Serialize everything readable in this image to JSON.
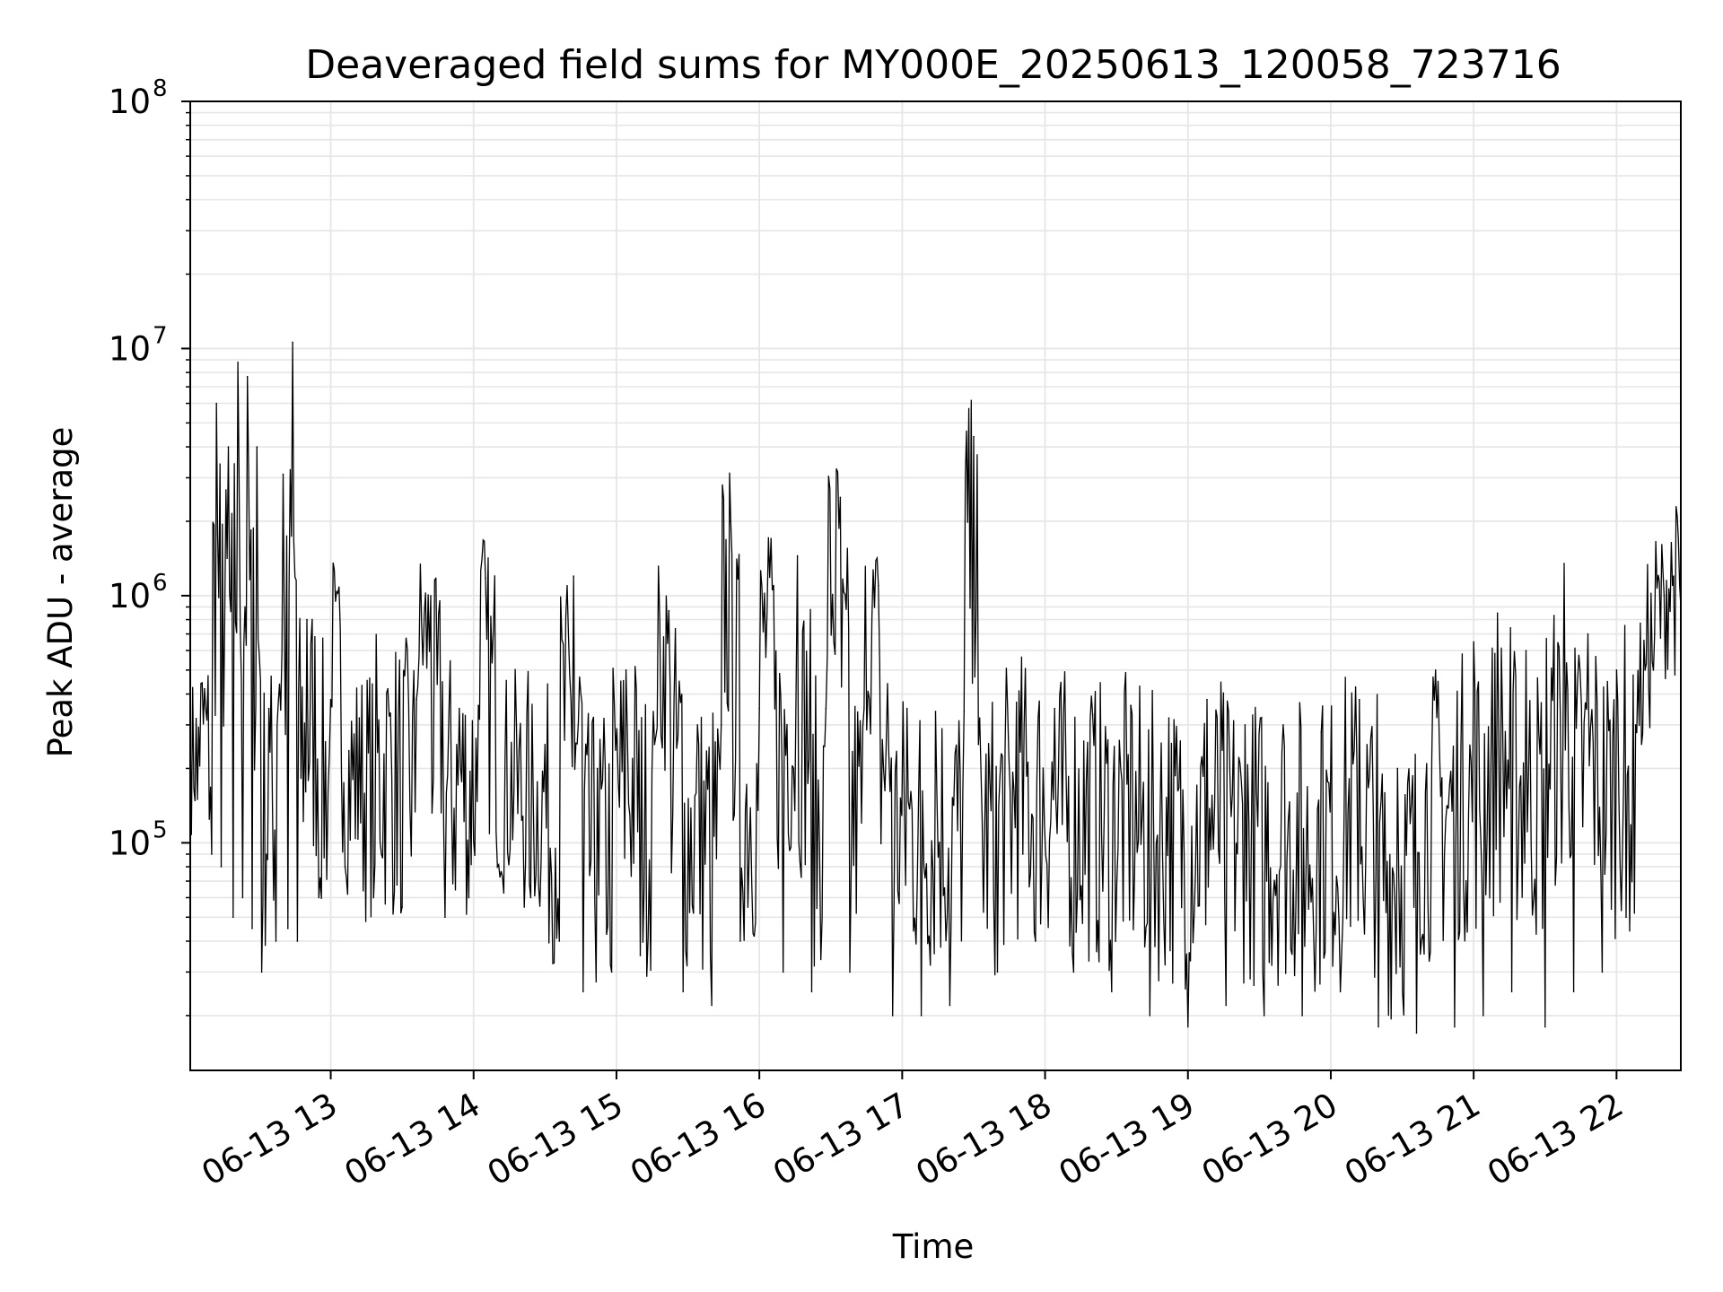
{
  "chart_data": {
    "type": "line",
    "title": "Deaveraged field sums for MY000E_20250613_120058_723716",
    "xlabel": "Time",
    "ylabel": "Peak ADU - average",
    "yscale": "log",
    "xlim": [
      "2025-06-13 12:01",
      "2025-06-13 22:27"
    ],
    "ylim": [
      12000,
      100000000
    ],
    "grid": true,
    "line_color": "#000000",
    "grid_color": "#e6e6e6",
    "x_ticks": [
      {
        "value": "2025-06-13 13:00",
        "label": "06-13 13"
      },
      {
        "value": "2025-06-13 14:00",
        "label": "06-13 14"
      },
      {
        "value": "2025-06-13 15:00",
        "label": "06-13 15"
      },
      {
        "value": "2025-06-13 16:00",
        "label": "06-13 16"
      },
      {
        "value": "2025-06-13 17:00",
        "label": "06-13 17"
      },
      {
        "value": "2025-06-13 18:00",
        "label": "06-13 18"
      },
      {
        "value": "2025-06-13 19:00",
        "label": "06-13 19"
      },
      {
        "value": "2025-06-13 20:00",
        "label": "06-13 20"
      },
      {
        "value": "2025-06-13 21:00",
        "label": "06-13 21"
      },
      {
        "value": "2025-06-13 22:00",
        "label": "06-13 22"
      }
    ],
    "y_ticks": [
      {
        "value": 100000,
        "base": "10",
        "exp": "5"
      },
      {
        "value": 1000000,
        "base": "10",
        "exp": "6"
      },
      {
        "value": 10000000,
        "base": "10",
        "exp": "7"
      },
      {
        "value": 100000000,
        "base": "10",
        "exp": "8"
      }
    ],
    "series": [
      {
        "values": [
          [
            "2025-06-13 12:01",
            300000
          ],
          [
            "2025-06-13 12:04",
            150000
          ],
          [
            "2025-06-13 12:07",
            420000
          ],
          [
            "2025-06-13 12:10",
            90000
          ],
          [
            "2025-06-13 12:12",
            6000000
          ],
          [
            "2025-06-13 12:14",
            80000
          ],
          [
            "2025-06-13 12:17",
            4000000
          ],
          [
            "2025-06-13 12:19",
            50000
          ],
          [
            "2025-06-13 12:21",
            8800000
          ],
          [
            "2025-06-13 12:23",
            60000
          ],
          [
            "2025-06-13 12:25",
            7700000
          ],
          [
            "2025-06-13 12:27",
            45000
          ],
          [
            "2025-06-13 12:29",
            4000000
          ],
          [
            "2025-06-13 12:31",
            30000
          ],
          [
            "2025-06-13 12:34",
            350000
          ],
          [
            "2025-06-13 12:37",
            40000
          ],
          [
            "2025-06-13 12:40",
            3100000
          ],
          [
            "2025-06-13 12:42",
            45000
          ],
          [
            "2025-06-13 12:44",
            10600000
          ],
          [
            "2025-06-13 12:46",
            40000
          ],
          [
            "2025-06-13 12:50",
            800000
          ],
          [
            "2025-06-13 12:55",
            60000
          ],
          [
            "2025-06-13 13:00",
            380000
          ],
          [
            "2025-06-13 13:02",
            950000
          ],
          [
            "2025-06-13 13:06",
            80000
          ],
          [
            "2025-06-13 13:12",
            320000
          ],
          [
            "2025-06-13 13:18",
            60000
          ],
          [
            "2025-06-13 13:24",
            420000
          ],
          [
            "2025-06-13 13:30",
            55000
          ],
          [
            "2025-06-13 13:36",
            380000
          ],
          [
            "2025-06-13 13:42",
            1000000
          ],
          [
            "2025-06-13 13:48",
            50000
          ],
          [
            "2025-06-13 13:54",
            350000
          ],
          [
            "2025-06-13 13:58",
            60000
          ],
          [
            "2025-06-13 14:02",
            360000
          ],
          [
            "2025-06-13 14:05",
            1180000
          ],
          [
            "2025-06-13 14:10",
            80000
          ],
          [
            "2025-06-13 14:18",
            300000
          ],
          [
            "2025-06-13 14:24",
            60000
          ],
          [
            "2025-06-13 14:30",
            250000
          ],
          [
            "2025-06-13 14:36",
            40000
          ],
          [
            "2025-06-13 14:42",
            1200000
          ],
          [
            "2025-06-13 14:46",
            25000
          ],
          [
            "2025-06-13 14:52",
            200000
          ],
          [
            "2025-06-13 14:58",
            30000
          ],
          [
            "2025-06-13 15:04",
            500000
          ],
          [
            "2025-06-13 15:10",
            35000
          ],
          [
            "2025-06-13 15:16",
            250000
          ],
          [
            "2025-06-13 15:22",
            870000
          ],
          [
            "2025-06-13 15:28",
            25000
          ],
          [
            "2025-06-13 15:34",
            300000
          ],
          [
            "2025-06-13 15:40",
            22000
          ],
          [
            "2025-06-13 15:44",
            300000
          ],
          [
            "2025-06-13 15:48",
            2000000
          ],
          [
            "2025-06-13 15:52",
            40000
          ],
          [
            "2025-06-13 16:00",
            350000
          ],
          [
            "2025-06-13 16:06",
            1100000
          ],
          [
            "2025-06-13 16:10",
            30000
          ],
          [
            "2025-06-13 16:16",
            1450000
          ],
          [
            "2025-06-13 16:22",
            25000
          ],
          [
            "2025-06-13 16:28",
            350000
          ],
          [
            "2025-06-13 16:34",
            2500000
          ],
          [
            "2025-06-13 16:38",
            30000
          ],
          [
            "2025-06-13 16:44",
            350000
          ],
          [
            "2025-06-13 16:50",
            1100000
          ],
          [
            "2025-06-13 16:56",
            20000
          ],
          [
            "2025-06-13 17:02",
            350000
          ],
          [
            "2025-06-13 17:08",
            20000
          ],
          [
            "2025-06-13 17:14",
            340000
          ],
          [
            "2025-06-13 17:20",
            22000
          ],
          [
            "2025-06-13 17:26",
            340000
          ],
          [
            "2025-06-13 17:30",
            4400000
          ],
          [
            "2025-06-13 17:32",
            250000
          ],
          [
            "2025-06-13 17:40",
            30000
          ],
          [
            "2025-06-13 17:48",
            370000
          ],
          [
            "2025-06-13 17:56",
            40000
          ],
          [
            "2025-06-13 18:04",
            350000
          ],
          [
            "2025-06-13 18:12",
            30000
          ],
          [
            "2025-06-13 18:20",
            330000
          ],
          [
            "2025-06-13 18:28",
            25000
          ],
          [
            "2025-06-13 18:36",
            360000
          ],
          [
            "2025-06-13 18:44",
            20000
          ],
          [
            "2025-06-13 18:52",
            320000
          ],
          [
            "2025-06-13 19:00",
            18000
          ],
          [
            "2025-06-13 19:08",
            380000
          ],
          [
            "2025-06-13 19:16",
            22000
          ],
          [
            "2025-06-13 19:24",
            300000
          ],
          [
            "2025-06-13 19:32",
            20000
          ],
          [
            "2025-06-13 19:40",
            300000
          ],
          [
            "2025-06-13 19:48",
            20000
          ],
          [
            "2025-06-13 19:56",
            280000
          ],
          [
            "2025-06-13 20:04",
            25000
          ],
          [
            "2025-06-13 20:12",
            380000
          ],
          [
            "2025-06-13 20:20",
            18000
          ],
          [
            "2025-06-13 20:28",
            200000
          ],
          [
            "2025-06-13 20:36",
            17000
          ],
          [
            "2025-06-13 20:44",
            500000
          ],
          [
            "2025-06-13 20:52",
            18000
          ],
          [
            "2025-06-13 21:00",
            650000
          ],
          [
            "2025-06-13 21:04",
            20000
          ],
          [
            "2025-06-13 21:10",
            850000
          ],
          [
            "2025-06-13 21:16",
            25000
          ],
          [
            "2025-06-13 21:22",
            600000
          ],
          [
            "2025-06-13 21:30",
            18000
          ],
          [
            "2025-06-13 21:38",
            1350000
          ],
          [
            "2025-06-13 21:42",
            25000
          ],
          [
            "2025-06-13 21:48",
            700000
          ],
          [
            "2025-06-13 21:54",
            30000
          ],
          [
            "2025-06-13 22:00",
            500000
          ],
          [
            "2025-06-13 22:04",
            50000
          ],
          [
            "2025-06-13 22:08",
            300000
          ],
          [
            "2025-06-13 22:12",
            500000
          ],
          [
            "2025-06-13 22:16",
            700000
          ],
          [
            "2025-06-13 22:20",
            1000000
          ],
          [
            "2025-06-13 22:24",
            1200000
          ],
          [
            "2025-06-13 22:27",
            900000
          ]
        ]
      }
    ]
  }
}
